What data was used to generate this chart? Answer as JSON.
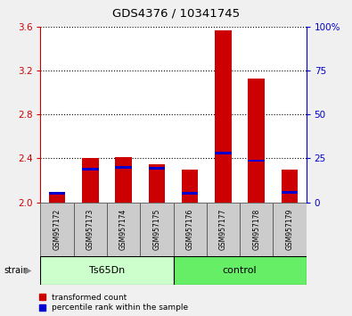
{
  "title": "GDS4376 / 10341745",
  "samples": [
    "GSM957172",
    "GSM957173",
    "GSM957174",
    "GSM957175",
    "GSM957176",
    "GSM957177",
    "GSM957178",
    "GSM957179"
  ],
  "red_values": [
    2.07,
    2.4,
    2.41,
    2.35,
    2.3,
    3.57,
    3.13,
    2.3
  ],
  "blue_values": [
    2.08,
    2.3,
    2.32,
    2.31,
    2.08,
    2.45,
    2.38,
    2.09
  ],
  "ylim": [
    2.0,
    3.6
  ],
  "yticks_left": [
    2.0,
    2.4,
    2.8,
    3.2,
    3.6
  ],
  "yticks_right": [
    0,
    25,
    50,
    75,
    100
  ],
  "group1_label": "Ts65Dn",
  "group2_label": "control",
  "group1_indices": [
    0,
    1,
    2,
    3
  ],
  "group2_indices": [
    4,
    5,
    6,
    7
  ],
  "strain_label": "strain",
  "bar_width": 0.5,
  "bar_color_red": "#cc0000",
  "bar_color_blue": "#0000cc",
  "group1_bg": "#ccffcc",
  "group2_bg": "#66ee66",
  "sample_bg": "#cccccc",
  "plot_bg": "#ffffff",
  "base_value": 2.0,
  "legend_red": "transformed count",
  "legend_blue": "percentile rank within the sample",
  "blue_bar_height": 0.022
}
